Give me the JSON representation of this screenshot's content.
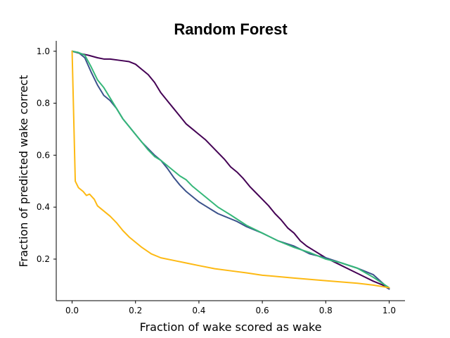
{
  "chart_data": {
    "type": "line",
    "title": "Random Forest",
    "xlabel": "Fraction of wake scored as wake",
    "ylabel": "Fraction of predicted wake correct",
    "xlim": [
      -0.05,
      1.05
    ],
    "ylim": [
      0.04,
      1.04
    ],
    "xticks": [
      0.0,
      0.2,
      0.4,
      0.6,
      0.8,
      1.0
    ],
    "xtick_labels": [
      "0.0",
      "0.2",
      "0.4",
      "0.6",
      "0.8",
      "1.0"
    ],
    "yticks": [
      0.2,
      0.4,
      0.6,
      0.8,
      1.0
    ],
    "ytick_labels": [
      "0.2",
      "0.4",
      "0.6",
      "0.8",
      "1.0"
    ],
    "grid": false,
    "legend": "none",
    "series": [
      {
        "color": "#440154",
        "x": [
          0.0,
          0.03,
          0.05,
          0.08,
          0.1,
          0.12,
          0.15,
          0.18,
          0.2,
          0.22,
          0.24,
          0.26,
          0.28,
          0.3,
          0.32,
          0.34,
          0.36,
          0.38,
          0.4,
          0.42,
          0.44,
          0.46,
          0.48,
          0.5,
          0.52,
          0.54,
          0.56,
          0.58,
          0.6,
          0.62,
          0.64,
          0.66,
          0.68,
          0.7,
          0.72,
          0.74,
          0.76,
          0.8,
          0.85,
          0.9,
          0.95,
          0.98,
          1.0
        ],
        "y": [
          1.0,
          0.99,
          0.985,
          0.975,
          0.97,
          0.97,
          0.965,
          0.96,
          0.95,
          0.93,
          0.91,
          0.88,
          0.84,
          0.81,
          0.78,
          0.75,
          0.72,
          0.7,
          0.68,
          0.66,
          0.635,
          0.61,
          0.585,
          0.555,
          0.535,
          0.51,
          0.48,
          0.455,
          0.43,
          0.405,
          0.375,
          0.35,
          0.32,
          0.3,
          0.27,
          0.25,
          0.235,
          0.205,
          0.175,
          0.145,
          0.115,
          0.1,
          0.085
        ]
      },
      {
        "color": "#3b528b",
        "x": [
          0.0,
          0.02,
          0.04,
          0.06,
          0.08,
          0.1,
          0.12,
          0.14,
          0.16,
          0.18,
          0.2,
          0.22,
          0.24,
          0.26,
          0.28,
          0.3,
          0.32,
          0.34,
          0.36,
          0.38,
          0.4,
          0.42,
          0.44,
          0.46,
          0.48,
          0.5,
          0.52,
          0.55,
          0.6,
          0.65,
          0.7,
          0.75,
          0.8,
          0.85,
          0.9,
          0.95,
          1.0
        ],
        "y": [
          1.0,
          0.995,
          0.975,
          0.92,
          0.87,
          0.83,
          0.81,
          0.78,
          0.74,
          0.71,
          0.68,
          0.65,
          0.625,
          0.6,
          0.58,
          0.55,
          0.515,
          0.485,
          0.46,
          0.44,
          0.42,
          0.405,
          0.39,
          0.375,
          0.365,
          0.355,
          0.345,
          0.325,
          0.3,
          0.27,
          0.25,
          0.22,
          0.205,
          0.185,
          0.165,
          0.14,
          0.085
        ]
      },
      {
        "color": "#35b779",
        "x": [
          0.0,
          0.02,
          0.04,
          0.06,
          0.08,
          0.1,
          0.12,
          0.14,
          0.16,
          0.18,
          0.2,
          0.22,
          0.24,
          0.26,
          0.28,
          0.3,
          0.32,
          0.34,
          0.36,
          0.38,
          0.4,
          0.42,
          0.44,
          0.46,
          0.48,
          0.5,
          0.55,
          0.6,
          0.65,
          0.7,
          0.75,
          0.8,
          0.85,
          0.9,
          0.95,
          1.0
        ],
        "y": [
          1.0,
          0.995,
          0.985,
          0.94,
          0.89,
          0.86,
          0.82,
          0.78,
          0.74,
          0.71,
          0.68,
          0.65,
          0.62,
          0.595,
          0.58,
          0.56,
          0.54,
          0.52,
          0.505,
          0.48,
          0.46,
          0.44,
          0.42,
          0.4,
          0.385,
          0.37,
          0.33,
          0.3,
          0.27,
          0.245,
          0.225,
          0.2,
          0.185,
          0.165,
          0.13,
          0.09
        ]
      },
      {
        "color": "#fdb913",
        "x": [
          0.0,
          0.01,
          0.02,
          0.035,
          0.045,
          0.055,
          0.07,
          0.08,
          0.1,
          0.12,
          0.14,
          0.16,
          0.18,
          0.2,
          0.22,
          0.25,
          0.28,
          0.32,
          0.36,
          0.4,
          0.45,
          0.5,
          0.55,
          0.6,
          0.7,
          0.8,
          0.9,
          0.95,
          1.0
        ],
        "y": [
          1.0,
          0.5,
          0.475,
          0.46,
          0.445,
          0.45,
          0.43,
          0.405,
          0.385,
          0.365,
          0.34,
          0.31,
          0.285,
          0.265,
          0.245,
          0.22,
          0.205,
          0.195,
          0.185,
          0.175,
          0.163,
          0.155,
          0.147,
          0.138,
          0.127,
          0.117,
          0.107,
          0.1,
          0.09
        ]
      }
    ]
  }
}
